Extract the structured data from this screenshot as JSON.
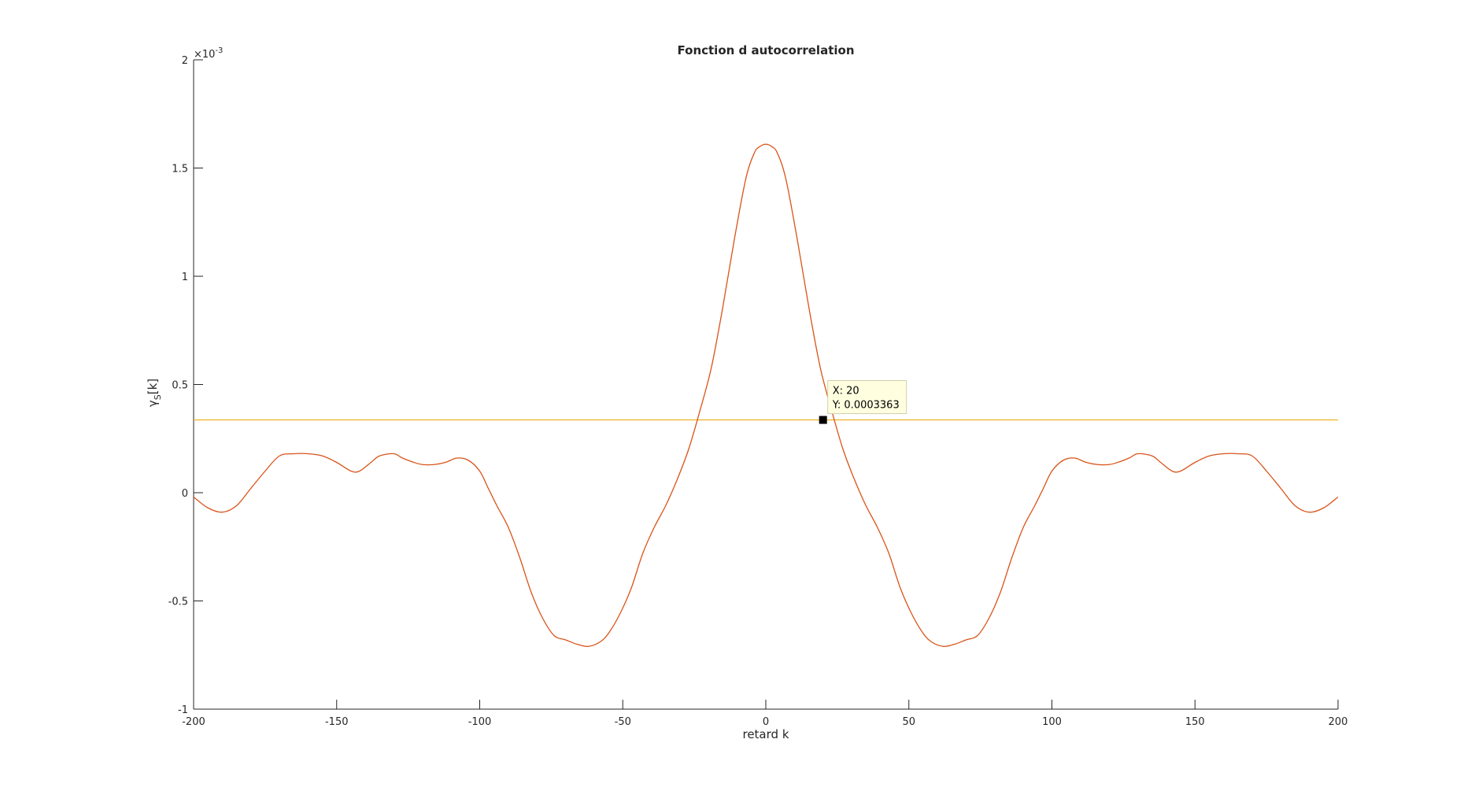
{
  "chart_data": {
    "type": "line",
    "title": "Fonction d autocorrelation",
    "xlabel": "retard k",
    "ylabel_main": "γ",
    "ylabel_sub": "S",
    "ylabel_tail": "[k]",
    "y_exponent_label": "×10",
    "y_exponent_power": "-3",
    "xlim": [
      -200,
      200
    ],
    "ylim": [
      -1,
      2
    ],
    "xticks": [
      -200,
      -150,
      -100,
      -50,
      0,
      50,
      100,
      150,
      200
    ],
    "xtick_labels": [
      "-200",
      "-150",
      "-100",
      "-50",
      "0",
      "50",
      "100",
      "150",
      "200"
    ],
    "yticks": [
      -1,
      -0.5,
      0,
      0.5,
      1,
      1.5,
      2
    ],
    "ytick_labels": [
      "-1",
      "-0.5",
      "0",
      "0.5",
      "1",
      "1.5",
      "2"
    ],
    "grid": false,
    "colors": {
      "series": "#D95319",
      "threshold": "#EDB120",
      "axis": "#262626"
    },
    "series": [
      {
        "x": [
          -200,
          -195,
          -190,
          -185,
          -180,
          -175,
          -170,
          -165,
          -160,
          -155,
          -150,
          -145,
          -142,
          -138,
          -135,
          -130,
          -127,
          -123,
          -120,
          -116,
          -112,
          -108,
          -104,
          -100,
          -97,
          -94,
          -90,
          -86,
          -82,
          -78,
          -74,
          -70,
          -66,
          -62,
          -58,
          -55,
          -51,
          -47,
          -43,
          -39,
          -35,
          -31,
          -27,
          -23,
          -19,
          -15,
          -11,
          -7,
          -4,
          -2,
          0,
          2,
          4,
          7,
          11,
          15,
          19,
          23,
          27,
          31,
          35,
          39,
          43,
          47,
          51,
          55,
          58,
          62,
          66,
          70,
          74,
          78,
          82,
          86,
          90,
          94,
          97,
          100,
          104,
          108,
          112,
          116,
          120,
          123,
          127,
          130,
          135,
          138,
          142,
          145,
          150,
          155,
          160,
          165,
          170,
          175,
          180,
          185,
          190,
          195,
          200
        ],
        "y": [
          -2e-05,
          -7e-05,
          -9e-05,
          -6e-05,
          2e-05,
          0.0001,
          0.00017,
          0.00018,
          0.00018,
          0.00017,
          0.00014,
          0.0001,
          0.0001,
          0.00014,
          0.00017,
          0.00018,
          0.00016,
          0.00014,
          0.00013,
          0.00013,
          0.00014,
          0.00016,
          0.00015,
          0.0001,
          2e-05,
          -6e-05,
          -0.00016,
          -0.0003,
          -0.00046,
          -0.00058,
          -0.00066,
          -0.00068,
          -0.0007,
          -0.00071,
          -0.00069,
          -0.00065,
          -0.00056,
          -0.00044,
          -0.00028,
          -0.00016,
          -6e-05,
          6e-05,
          0.0002,
          0.00038,
          0.00058,
          0.00086,
          0.00117,
          0.00145,
          0.00157,
          0.0016,
          0.00161,
          0.0016,
          0.00157,
          0.00145,
          0.00117,
          0.00086,
          0.00058,
          0.00038,
          0.0002,
          6e-05,
          -6e-05,
          -0.00016,
          -0.00028,
          -0.00044,
          -0.00056,
          -0.00065,
          -0.00069,
          -0.00071,
          -0.0007,
          -0.00068,
          -0.00066,
          -0.00058,
          -0.00046,
          -0.0003,
          -0.00016,
          -6e-05,
          2e-05,
          0.0001,
          0.00015,
          0.00016,
          0.00014,
          0.00013,
          0.00013,
          0.00014,
          0.00016,
          0.00018,
          0.00017,
          0.00014,
          0.0001,
          0.0001,
          0.00014,
          0.00017,
          0.00018,
          0.00018,
          0.00017,
          0.0001,
          2e-05,
          -6e-05,
          -9e-05,
          -7e-05,
          -2e-05
        ]
      }
    ],
    "threshold_line": {
      "y": 0.0003363
    },
    "datatip": {
      "x": 20,
      "y": 0.0003363,
      "label_x": "X: 20",
      "label_y": "Y: 0.0003363"
    }
  }
}
